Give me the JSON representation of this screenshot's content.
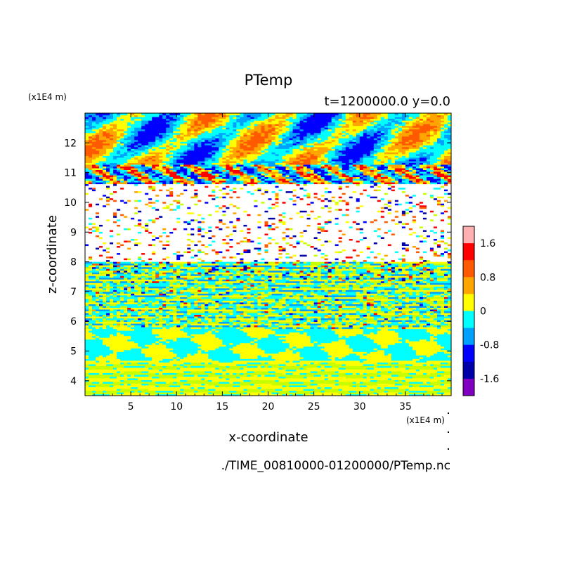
{
  "chart_data": {
    "type": "heatmap",
    "title": "PTemp",
    "subtitle": "t=1200000.0 y=0.0",
    "xlabel": "x-coordinate",
    "ylabel": "z-coordinate",
    "x_unit": "(x1E4 m)",
    "y_unit": "(x1E4 m)",
    "xlim": [
      0,
      40
    ],
    "ylim": [
      3.5,
      13
    ],
    "x_ticks": [
      5,
      10,
      15,
      20,
      25,
      30,
      35
    ],
    "y_ticks": [
      4,
      5,
      6,
      7,
      8,
      9,
      10,
      11,
      12
    ],
    "colorbar": {
      "levels": [
        -2.0,
        -1.6,
        -1.2,
        -0.8,
        -0.4,
        0,
        0.4,
        0.8,
        1.2,
        1.6,
        2.0
      ],
      "labels": [
        "1.6",
        "0.8",
        "0",
        "-0.8",
        "-1.6"
      ],
      "label_values": [
        1.6,
        0.8,
        0,
        -0.8,
        -1.6
      ],
      "colors": [
        "#ffb0b0",
        "#ff0000",
        "#ff5a00",
        "#ffa500",
        "#ffff00",
        "#00ffff",
        "#00a0ff",
        "#0000ff",
        "#0000aa",
        "#8000c0"
      ]
    },
    "regions": [
      {
        "z_range": [
          3.5,
          5.7
        ],
        "description": "Alternating cyan and yellow bands, values near -0.4 to 0.4"
      },
      {
        "z_range": [
          5.7,
          8.0
        ],
        "description": "Fine layered mixture of cyan, yellow, green with blue and red streaks"
      },
      {
        "z_range": [
          8.0,
          10.6
        ],
        "description": "Mostly white with scattered multicolor dashes"
      },
      {
        "z_range": [
          10.6,
          13.0
        ],
        "description": "Wavy pattern of orange, yellow, cyan and blue"
      }
    ]
  },
  "filename": "./TIME_00810000-01200000/PTemp.nc"
}
